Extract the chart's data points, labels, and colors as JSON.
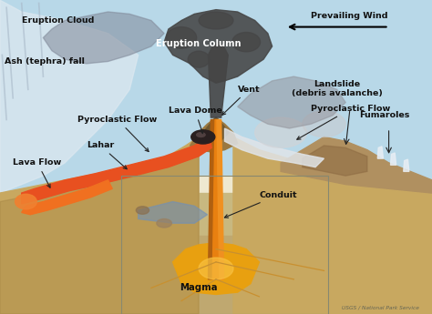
{
  "labels": {
    "eruption_cloud": "Eruption Cloud",
    "eruption_column": "Eruption Column",
    "ash_fall": "Ash (tephra) fall",
    "prevailing_wind": "Prevailing Wind",
    "vent": "Vent",
    "lava_dome": "Lava Dome",
    "pyroclastic_flow_left": "Pyroclastic Flow",
    "pyroclastic_flow_right": "Pyroclastic Flow",
    "lahar": "Lahar",
    "lava_flow": "Lava Flow",
    "conduit": "Conduit",
    "magma": "Magma",
    "landslide": "Landslide\n(debris avalanche)",
    "fumaroles": "Fumaroles"
  },
  "colors": {
    "sky": "#b8d8e8",
    "left_ash_area": "#d8e8f0",
    "ground_tan": "#d4b878",
    "ground_dark": "#a08040",
    "ground_shadow": "#b89850",
    "volcano_tan": "#c8a860",
    "volcano_shadow": "#9a7840",
    "summit_dark": "#705830",
    "lava_red": "#d83010",
    "lava_bright": "#e85020",
    "lava_orange": "#f07020",
    "lahar_tan": "#c09840",
    "conduit_orange": "#e88010",
    "conduit_dark": "#b06010",
    "magma_orange": "#e8a010",
    "smoke_dark": "#454545",
    "smoke_mid": "#606060",
    "smoke_light": "#909090",
    "ash_white": "#c0c8d0",
    "pyroclastic_white": "#e0e4e8",
    "right_slope": "#c0a870",
    "debris_brown": "#b09060",
    "debris_dark": "#8a6840",
    "fumarole_white": "#e8eef4",
    "underground_light": "#ddd0a0",
    "underground_mid": "#c8b880",
    "crack_gold": "#c89030",
    "blue_layer": "#8090b0",
    "cross_section_bg": "#e0d8b0",
    "border_color": "#888870"
  },
  "figsize": [
    4.74,
    3.45
  ],
  "dpi": 100
}
